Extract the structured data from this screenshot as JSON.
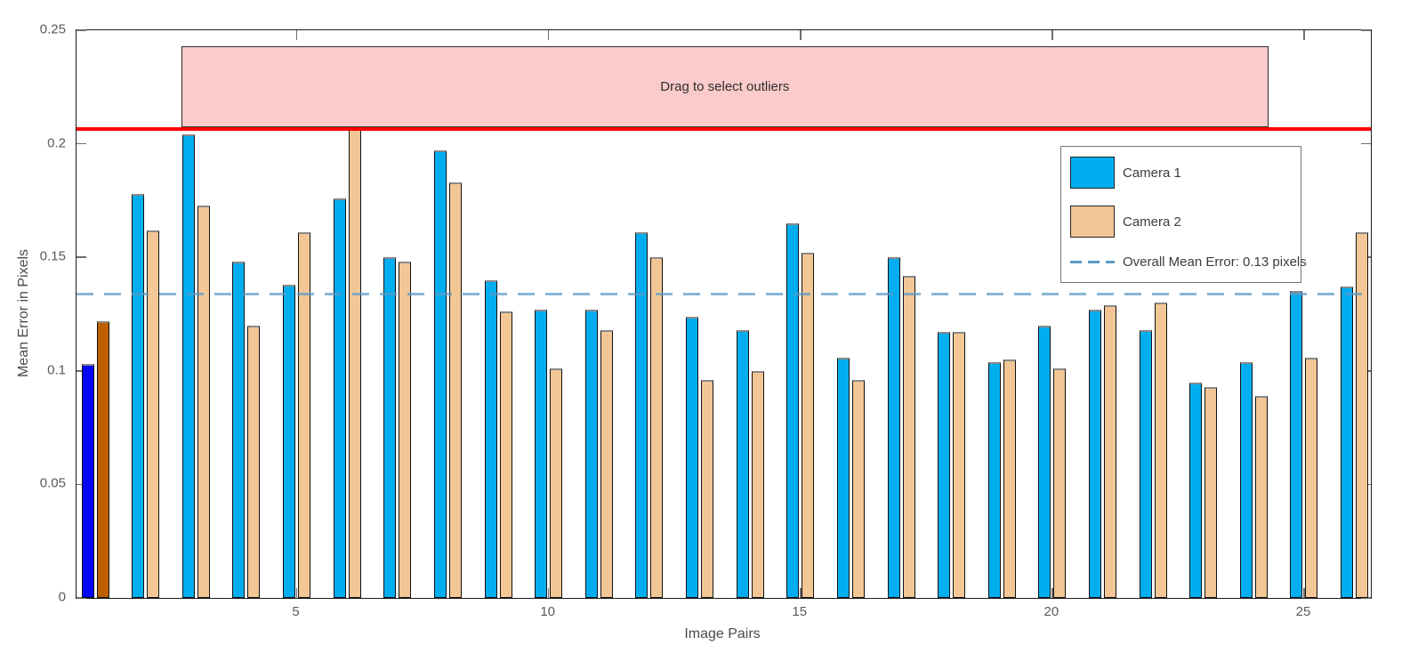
{
  "chart_data": {
    "type": "bar",
    "title": "",
    "xlabel": "Image Pairs",
    "ylabel": "Mean Error in Pixels",
    "ylim": [
      0,
      0.25
    ],
    "ytick_values": [
      0,
      0.05,
      0.1,
      0.15,
      0.2,
      0.25
    ],
    "ytick_labels": [
      "0",
      "0.05",
      "0.1",
      "0.15",
      "0.2",
      "0.25"
    ],
    "xtick_pairs": [
      5,
      10,
      15,
      20,
      25
    ],
    "xtick_labels": [
      "5",
      "10",
      "15",
      "20",
      "25"
    ],
    "grid": "off",
    "legend_position": "top-right",
    "categories": [
      1,
      2,
      3,
      4,
      5,
      6,
      7,
      8,
      9,
      10,
      11,
      12,
      13,
      14,
      15,
      16,
      17,
      18,
      19,
      20,
      21,
      22,
      23,
      24,
      25,
      26
    ],
    "series": [
      {
        "name": "Camera 1",
        "color": "#00AEF0",
        "selected_color": "#0505FA",
        "values": [
          0.103,
          0.178,
          0.204,
          0.148,
          0.138,
          0.176,
          0.15,
          0.197,
          0.14,
          0.127,
          0.127,
          0.161,
          0.124,
          0.118,
          0.165,
          0.106,
          0.15,
          0.117,
          0.104,
          0.12,
          0.127,
          0.118,
          0.095,
          0.104,
          0.135,
          0.137
        ]
      },
      {
        "name": "Camera 2",
        "color": "#F2C795",
        "selected_color": "#BF6000",
        "values": [
          0.122,
          0.162,
          0.173,
          0.12,
          0.161,
          0.207,
          0.148,
          0.183,
          0.126,
          0.101,
          0.118,
          0.15,
          0.096,
          0.1,
          0.152,
          0.096,
          0.142,
          0.117,
          0.105,
          0.101,
          0.129,
          0.13,
          0.093,
          0.089,
          0.106,
          0.161
        ]
      }
    ],
    "selected_pairs": [
      1
    ],
    "mean_line": {
      "value": 0.134,
      "label": "Overall Mean Error: 0.13 pixels",
      "color": "#5B9BC8",
      "style": "dashed"
    },
    "threshold_line": {
      "value": 0.2065,
      "color": "#FF0000"
    },
    "selection_region": {
      "label": "Drag to select outliers",
      "pair_start": 2.71,
      "pair_end": 24.29,
      "y_top": 0.243,
      "fill": "#FBCBCB"
    },
    "legend": {
      "camera1_label": "Camera 1",
      "camera2_label": "Camera 2",
      "mean_label": "Overall Mean Error: 0.13 pixels"
    }
  }
}
